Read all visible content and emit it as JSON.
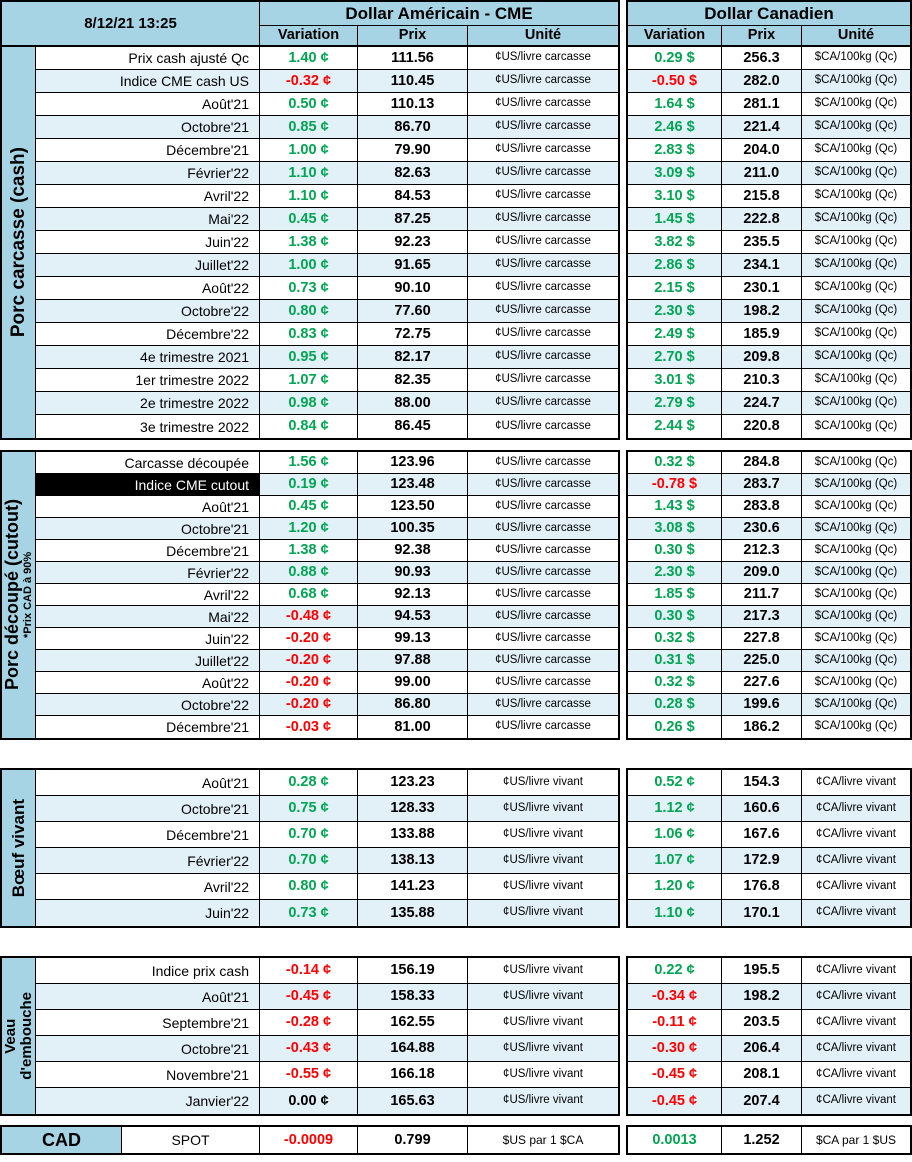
{
  "header": {
    "timestamp": "8/12/21 13:25",
    "us_title": "Dollar Américain - CME",
    "cad_title": "Dollar Canadien",
    "col_variation": "Variation",
    "col_prix": "Prix",
    "col_unite": "Unité"
  },
  "colors": {
    "positive": "#00A651",
    "negative": "#FF0000",
    "neutral": "#000000",
    "header_blue": "#A7D4E4",
    "row_alt": "#E2F0F8",
    "highlight_bg": "#000000",
    "highlight_text": "#FFFFFF"
  },
  "sections": [
    {
      "id": "porc-carcasse",
      "label_lines": [
        "Porc carcasse (cash)"
      ],
      "us_unit": "¢US/livre carcasse",
      "cad_unit": "$CA/100kg (Qc)",
      "rows": [
        {
          "label": "Prix cash ajusté Qc",
          "us_var": "1.40 ¢",
          "us_prix": "111.56",
          "cad_var": "0.29 $",
          "cad_prix": "256.3"
        },
        {
          "label": "Indice CME cash US",
          "us_var": "-0.32 ¢",
          "us_prix": "110.45",
          "cad_var": "-0.50 $",
          "cad_prix": "282.0"
        },
        {
          "label": "Août'21",
          "us_var": "0.50 ¢",
          "us_prix": "110.13",
          "cad_var": "1.64 $",
          "cad_prix": "281.1"
        },
        {
          "label": "Octobre'21",
          "us_var": "0.85 ¢",
          "us_prix": "86.70",
          "cad_var": "2.46 $",
          "cad_prix": "221.4"
        },
        {
          "label": "Décembre'21",
          "us_var": "1.00 ¢",
          "us_prix": "79.90",
          "cad_var": "2.83 $",
          "cad_prix": "204.0"
        },
        {
          "label": "Février'22",
          "us_var": "1.10 ¢",
          "us_prix": "82.63",
          "cad_var": "3.09 $",
          "cad_prix": "211.0"
        },
        {
          "label": "Avril'22",
          "us_var": "1.10 ¢",
          "us_prix": "84.53",
          "cad_var": "3.10 $",
          "cad_prix": "215.8"
        },
        {
          "label": "Mai'22",
          "us_var": "0.45 ¢",
          "us_prix": "87.25",
          "cad_var": "1.45 $",
          "cad_prix": "222.8"
        },
        {
          "label": "Juin'22",
          "us_var": "1.38 ¢",
          "us_prix": "92.23",
          "cad_var": "3.82 $",
          "cad_prix": "235.5"
        },
        {
          "label": "Juillet'22",
          "us_var": "1.00 ¢",
          "us_prix": "91.65",
          "cad_var": "2.86 $",
          "cad_prix": "234.1"
        },
        {
          "label": "Août'22",
          "us_var": "0.73 ¢",
          "us_prix": "90.10",
          "cad_var": "2.15 $",
          "cad_prix": "230.1"
        },
        {
          "label": "Octobre'22",
          "us_var": "0.80 ¢",
          "us_prix": "77.60",
          "cad_var": "2.30 $",
          "cad_prix": "198.2"
        },
        {
          "label": "Décembre'22",
          "us_var": "0.83 ¢",
          "us_prix": "72.75",
          "cad_var": "2.49 $",
          "cad_prix": "185.9"
        },
        {
          "label": "4e trimestre 2021",
          "us_var": "0.95 ¢",
          "us_prix": "82.17",
          "cad_var": "2.70 $",
          "cad_prix": "209.8"
        },
        {
          "label": "1er trimestre 2022",
          "us_var": "1.07 ¢",
          "us_prix": "82.35",
          "cad_var": "3.01 $",
          "cad_prix": "210.3"
        },
        {
          "label": "2e trimestre 2022",
          "us_var": "0.98 ¢",
          "us_prix": "88.00",
          "cad_var": "2.79 $",
          "cad_prix": "224.7"
        },
        {
          "label": "3e trimestre 2022",
          "us_var": "0.84 ¢",
          "us_prix": "86.45",
          "cad_var": "2.44 $",
          "cad_prix": "220.8"
        }
      ]
    },
    {
      "id": "porc-decoupe",
      "label_lines": [
        "Porc découpé (cutout)"
      ],
      "sublabel": "*Prix CAD à 90%",
      "us_unit": "¢US/livre carcasse",
      "cad_unit": "$CA/100kg (Qc)",
      "rows": [
        {
          "label": "Carcasse découpée",
          "us_var": "1.56 ¢",
          "us_prix": "123.96",
          "cad_var": "0.32 $",
          "cad_prix": "284.8"
        },
        {
          "label": "Indice CME cutout",
          "hl": true,
          "us_var": "0.19 ¢",
          "us_prix": "123.48",
          "cad_var": "-0.78 $",
          "cad_prix": "283.7"
        },
        {
          "label": "Août'21",
          "us_var": "0.45 ¢",
          "us_prix": "123.50",
          "cad_var": "1.43 $",
          "cad_prix": "283.8"
        },
        {
          "label": "Octobre'21",
          "us_var": "1.20 ¢",
          "us_prix": "100.35",
          "cad_var": "3.08 $",
          "cad_prix": "230.6"
        },
        {
          "label": "Décembre'21",
          "us_var": "1.38 ¢",
          "us_prix": "92.38",
          "cad_var": "0.30 $",
          "cad_prix": "212.3"
        },
        {
          "label": "Février'22",
          "us_var": "0.88 ¢",
          "us_prix": "90.93",
          "cad_var": "2.30 $",
          "cad_prix": "209.0"
        },
        {
          "label": "Avril'22",
          "us_var": "0.68 ¢",
          "us_prix": "92.13",
          "cad_var": "1.85 $",
          "cad_prix": "211.7"
        },
        {
          "label": "Mai'22",
          "us_var": "-0.48 ¢",
          "us_prix": "94.53",
          "cad_var": "0.30 $",
          "cad_prix": "217.3"
        },
        {
          "label": "Juin'22",
          "us_var": "-0.20 ¢",
          "us_prix": "99.13",
          "cad_var": "0.32 $",
          "cad_prix": "227.8"
        },
        {
          "label": "Juillet'22",
          "us_var": "-0.20 ¢",
          "us_prix": "97.88",
          "cad_var": "0.31 $",
          "cad_prix": "225.0"
        },
        {
          "label": "Août'22",
          "us_var": "-0.20 ¢",
          "us_prix": "99.00",
          "cad_var": "0.32 $",
          "cad_prix": "227.6"
        },
        {
          "label": "Octobre'22",
          "us_var": "-0.20 ¢",
          "us_prix": "86.80",
          "cad_var": "0.28 $",
          "cad_prix": "199.6"
        },
        {
          "label": "Décembre'21",
          "us_var": "-0.03 ¢",
          "us_prix": "81.00",
          "cad_var": "0.26 $",
          "cad_prix": "186.2"
        }
      ]
    },
    {
      "id": "boeuf-vivant",
      "label_lines": [
        "Bœuf vivant"
      ],
      "us_unit": "¢US/livre vivant",
      "cad_unit": "¢CA/livre vivant",
      "rows": [
        {
          "label": "Août'21",
          "us_var": "0.28 ¢",
          "us_prix": "123.23",
          "cad_var": "0.52 ¢",
          "cad_prix": "154.3"
        },
        {
          "label": "Octobre'21",
          "us_var": "0.75 ¢",
          "us_prix": "128.33",
          "cad_var": "1.12 ¢",
          "cad_prix": "160.6"
        },
        {
          "label": "Décembre'21",
          "us_var": "0.70 ¢",
          "us_prix": "133.88",
          "cad_var": "1.06 ¢",
          "cad_prix": "167.6"
        },
        {
          "label": "Février'22",
          "us_var": "0.70 ¢",
          "us_prix": "138.13",
          "cad_var": "1.07 ¢",
          "cad_prix": "172.9"
        },
        {
          "label": "Avril'22",
          "us_var": "0.80 ¢",
          "us_prix": "141.23",
          "cad_var": "1.20 ¢",
          "cad_prix": "176.8"
        },
        {
          "label": "Juin'22",
          "us_var": "0.73 ¢",
          "us_prix": "135.88",
          "cad_var": "1.10 ¢",
          "cad_prix": "170.1"
        }
      ]
    },
    {
      "id": "veau-embouche",
      "label_lines": [
        "Veau",
        "d'embouche"
      ],
      "us_unit": "¢US/livre vivant",
      "cad_unit": "¢CA/livre vivant",
      "rows": [
        {
          "label": "Indice prix cash",
          "us_var": "-0.14 ¢",
          "us_prix": "156.19",
          "cad_var": "0.22 ¢",
          "cad_prix": "195.5"
        },
        {
          "label": "Août'21",
          "us_var": "-0.45 ¢",
          "us_prix": "158.33",
          "cad_var": "-0.34 ¢",
          "cad_prix": "198.2"
        },
        {
          "label": "Septembre'21",
          "us_var": "-0.28 ¢",
          "us_prix": "162.55",
          "cad_var": "-0.11 ¢",
          "cad_prix": "203.5"
        },
        {
          "label": "Octobre'21",
          "us_var": "-0.43 ¢",
          "us_prix": "164.88",
          "cad_var": "-0.30 ¢",
          "cad_prix": "206.4"
        },
        {
          "label": "Novembre'21",
          "us_var": "-0.55 ¢",
          "us_prix": "166.18",
          "cad_var": "-0.45 ¢",
          "cad_prix": "208.1"
        },
        {
          "label": "Janvier'22",
          "us_var": "0.00 ¢",
          "us_prix": "165.63",
          "cad_var": "-0.45 ¢",
          "cad_prix": "207.4"
        }
      ]
    }
  ],
  "footer": {
    "label": "CAD",
    "sublabel": "SPOT",
    "us_var": "-0.0009",
    "us_prix": "0.799",
    "us_unit": "$US par 1 $CA",
    "cad_var": "0.0013",
    "cad_prix": "1.252",
    "cad_unit": "$CA par 1 $US"
  }
}
